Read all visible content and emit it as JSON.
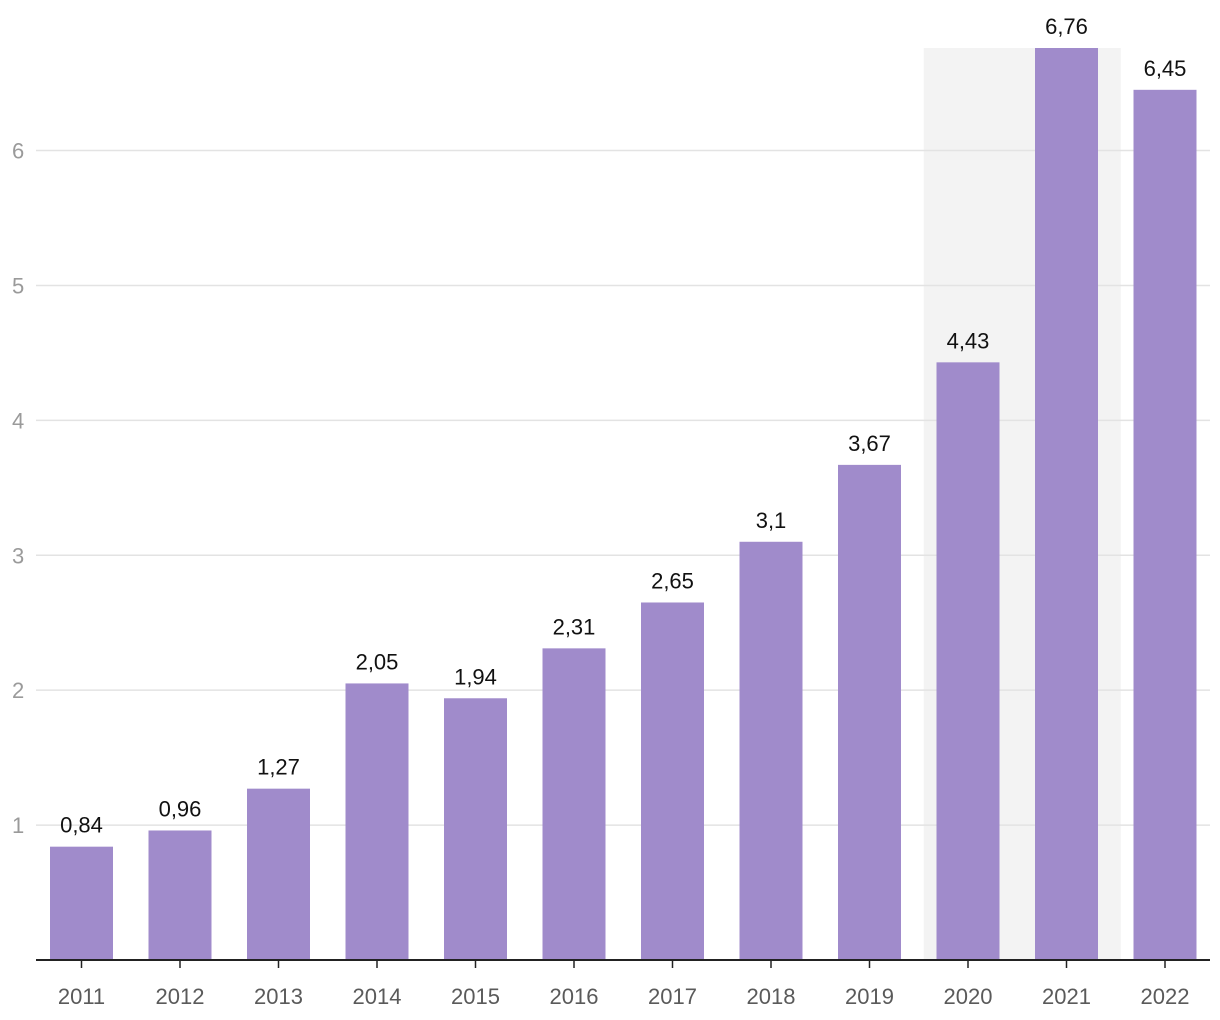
{
  "chart_data": {
    "type": "bar",
    "title": "",
    "xlabel": "",
    "ylabel": "",
    "categories": [
      "2011",
      "2012",
      "2013",
      "2014",
      "2015",
      "2016",
      "2017",
      "2018",
      "2019",
      "2020",
      "2021",
      "2022"
    ],
    "values": [
      0.84,
      0.96,
      1.27,
      2.05,
      1.94,
      2.31,
      2.65,
      3.1,
      3.67,
      4.43,
      6.76,
      6.45
    ],
    "data_labels": [
      "0,84",
      "0,96",
      "1,27",
      "2,05",
      "1,94",
      "2,31",
      "2,65",
      "3,1",
      "3,67",
      "4,43",
      "6,76",
      "6,45"
    ],
    "yticks": [
      1,
      2,
      3,
      4,
      5,
      6
    ],
    "ytick_labels": [
      "1",
      "2",
      "3",
      "4",
      "5",
      "6"
    ],
    "ylim": [
      0,
      6.76
    ],
    "grid": true,
    "legend": "none",
    "highlight_range": [
      "2020",
      "2021"
    ],
    "colors": {
      "bar": "#a08bcb",
      "highlight": "#f3f3f3",
      "grid": "#e3e3e3",
      "axis": "#222222"
    }
  }
}
